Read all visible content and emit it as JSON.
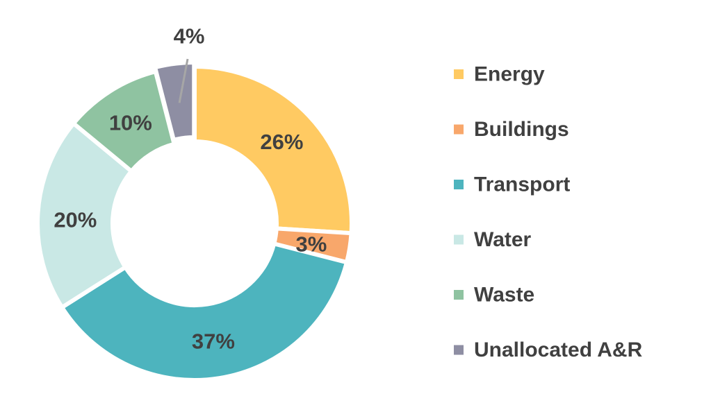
{
  "chart_data": {
    "type": "pie",
    "variant": "donut",
    "title": "",
    "categories": [
      "Energy",
      "Buildings",
      "Transport",
      "Water",
      "Waste",
      "Unallocated A&R"
    ],
    "values": [
      26,
      3,
      37,
      20,
      10,
      4
    ],
    "data_labels": [
      "26%",
      "3%",
      "37%",
      "20%",
      "10%",
      "4%"
    ],
    "colors": [
      "#FFCA62",
      "#F8A76B",
      "#4DB4BE",
      "#C9E8E5",
      "#8FC3A1",
      "#8E8EA3"
    ],
    "legend": {
      "placement": "right",
      "entries": [
        "Energy",
        "Buildings",
        "Transport",
        "Water",
        "Waste",
        "Unallocated A&R"
      ]
    },
    "start_angle": "top",
    "direction": "clockwise"
  }
}
